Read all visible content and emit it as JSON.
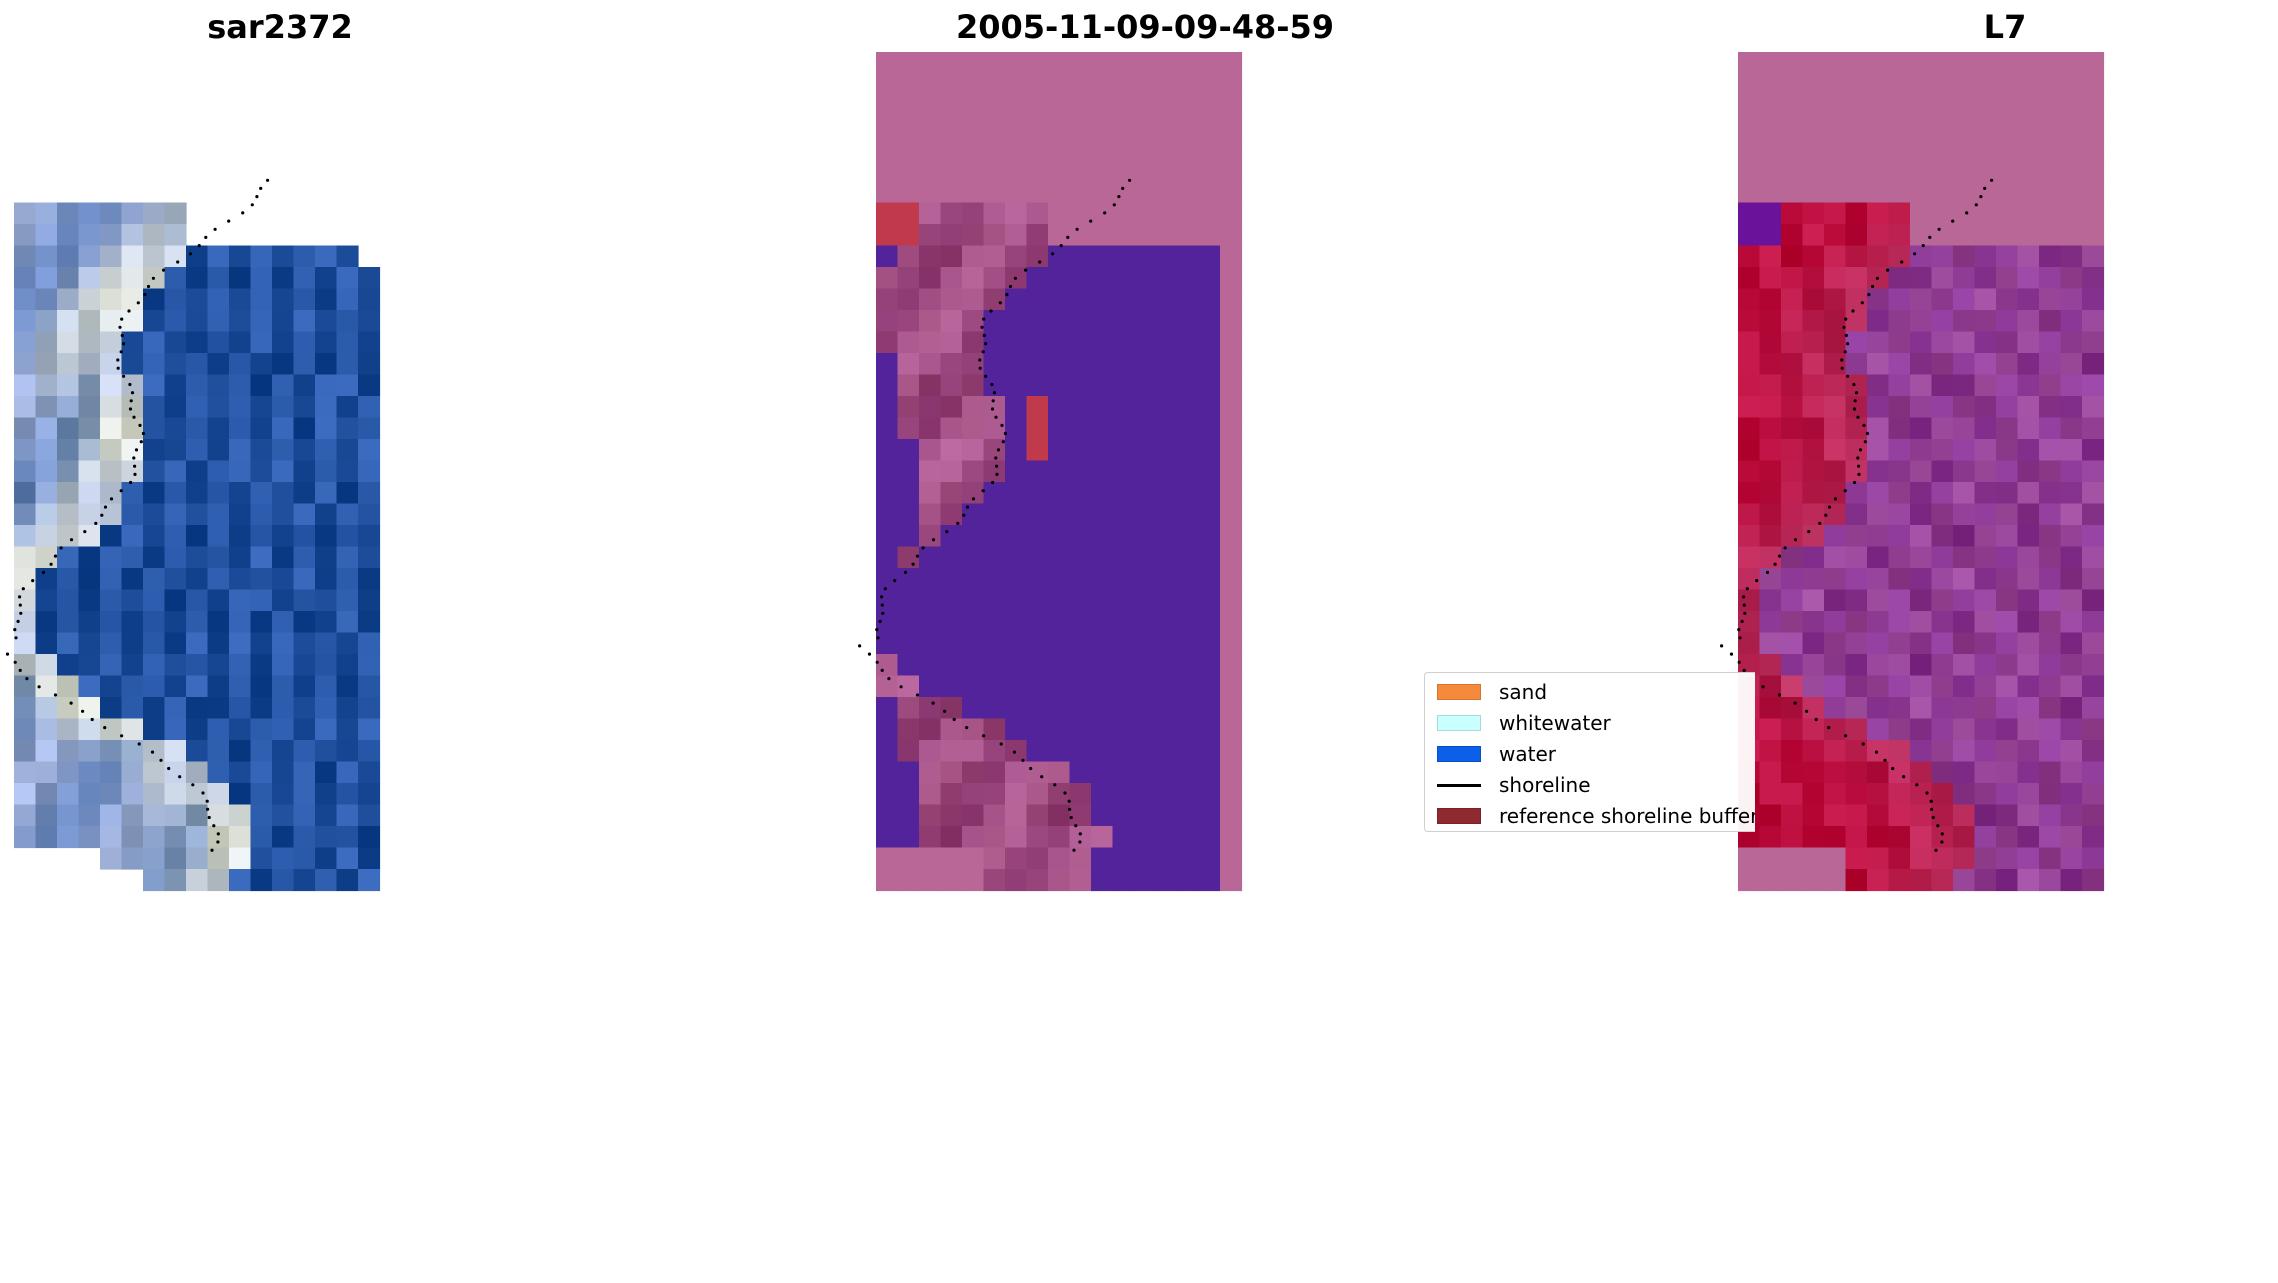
{
  "panels": [
    {
      "title": "sar2372",
      "kind": "rgb"
    },
    {
      "title": "2005-11-09-09-48-59",
      "kind": "classified"
    },
    {
      "title": "L7",
      "kind": "index"
    }
  ],
  "legend": {
    "items": [
      {
        "label": "sand",
        "color": "#f58a3c"
      },
      {
        "label": "whitewater",
        "color": "#c8ffff"
      },
      {
        "label": "water",
        "color": "#0b5fe8"
      },
      {
        "label": "shoreline",
        "color": "#000000",
        "style": "line"
      },
      {
        "label": "reference shoreline buffer",
        "color": "#8e2a2f"
      }
    ]
  },
  "colors": {
    "sat_water": "#2f5fb0",
    "sat_sand": "#b0c0e8",
    "sat_white": "#f2f4e8",
    "mask_pink": "#b96796",
    "class_water": "#52239a",
    "class_sand_mix": "#a4508d",
    "class_buffer": "#c13a4c",
    "index_red": "#c41547",
    "index_purple": "#a14fa0",
    "index_violet": "#6b129a"
  }
}
